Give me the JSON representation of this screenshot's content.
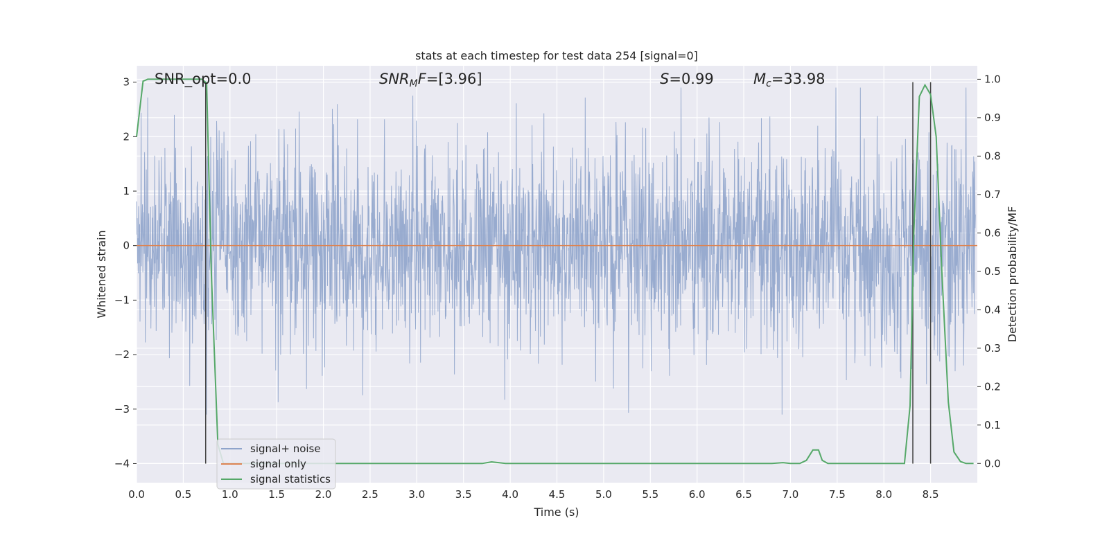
{
  "colors": {
    "plot_background": "#eaeaf2",
    "grid": "#ffffff",
    "noise": "#8fa4cb",
    "signal_only": "#dd8452",
    "statistics": "#55a868",
    "markers": "#444444"
  },
  "chart_data": {
    "type": "line",
    "title": "stats at each timestep for test data 254 [signal=0]",
    "xlabel": "Time (s)",
    "ylabel": "Whitened strain",
    "y2label": "Detection probability/MF",
    "xlim": [
      0.0,
      9.0
    ],
    "ylim": [
      -4.35,
      3.3
    ],
    "y2lim": [
      -0.05,
      1.035
    ],
    "grid": true,
    "legend_position": "lower-left",
    "x_ticks": [
      "0.0",
      "0.5",
      "1.0",
      "1.5",
      "2.0",
      "2.5",
      "3.0",
      "3.5",
      "4.0",
      "4.5",
      "5.0",
      "5.5",
      "6.0",
      "6.5",
      "7.0",
      "7.5",
      "8.0",
      "8.5"
    ],
    "y_ticks": [
      "3",
      "2",
      "1",
      "0",
      "−1",
      "−2",
      "−3",
      "−4"
    ],
    "y2_ticks": [
      "1.0",
      "0.9",
      "0.8",
      "0.7",
      "0.6",
      "0.5",
      "0.4",
      "0.3",
      "0.2",
      "0.1",
      "0.0"
    ],
    "annotations": {
      "snr_opt": "SNR_opt=0.0",
      "snr_mf_main": "SNR",
      "snr_mf_sub": "M",
      "snr_mf_rest": "F=[3.96]",
      "s_label": "S",
      "s_value": "=0.99",
      "mc_label": "M",
      "mc_sub": "c",
      "mc_value": "=33.98"
    },
    "series": [
      {
        "name": "signal+ noise",
        "axis": "left",
        "description_values": "whitened noise samples, approx. Gaussian, range about -3.1 to 2.9",
        "envelope": {
          "typical_range": [
            -1.3,
            1.4
          ],
          "extreme_range": [
            -3.1,
            2.9
          ]
        }
      },
      {
        "name": "signal only",
        "axis": "left",
        "x": [
          0.0,
          9.0
        ],
        "y": [
          0.0,
          0.0
        ]
      },
      {
        "name": "signal statistics",
        "axis": "right",
        "x": [
          0.0,
          0.07,
          0.12,
          0.2,
          0.7,
          0.75,
          0.8,
          0.87,
          0.93,
          1.0,
          3.7,
          3.8,
          3.95,
          6.8,
          6.92,
          7.0,
          7.1,
          7.17,
          7.24,
          7.3,
          7.34,
          7.4,
          7.5,
          8.0,
          8.15,
          8.22,
          8.28,
          8.32,
          8.38,
          8.44,
          8.5,
          8.56,
          8.62,
          8.69,
          8.75,
          8.82,
          8.88,
          8.96
        ],
        "y": [
          0.85,
          0.995,
          1.0,
          1.0,
          1.0,
          0.99,
          0.5,
          0.05,
          0.0,
          0.0,
          0.0,
          0.004,
          0.0,
          0.0,
          0.002,
          0.0,
          0.0,
          0.008,
          0.035,
          0.035,
          0.008,
          0.0,
          0.0,
          0.0,
          0.0,
          0.0,
          0.15,
          0.6,
          0.955,
          0.985,
          0.96,
          0.85,
          0.5,
          0.16,
          0.03,
          0.005,
          0.0,
          0.0
        ]
      }
    ],
    "vertical_markers": [
      0.74,
      8.31,
      8.5
    ],
    "markers_span_y": [
      -4.0,
      3.0
    ]
  },
  "legend": {
    "items": [
      {
        "label": "signal+ noise",
        "color": "#8fa4cb"
      },
      {
        "label": "signal only",
        "color": "#dd8452"
      },
      {
        "label": "signal statistics",
        "color": "#55a868"
      }
    ]
  }
}
